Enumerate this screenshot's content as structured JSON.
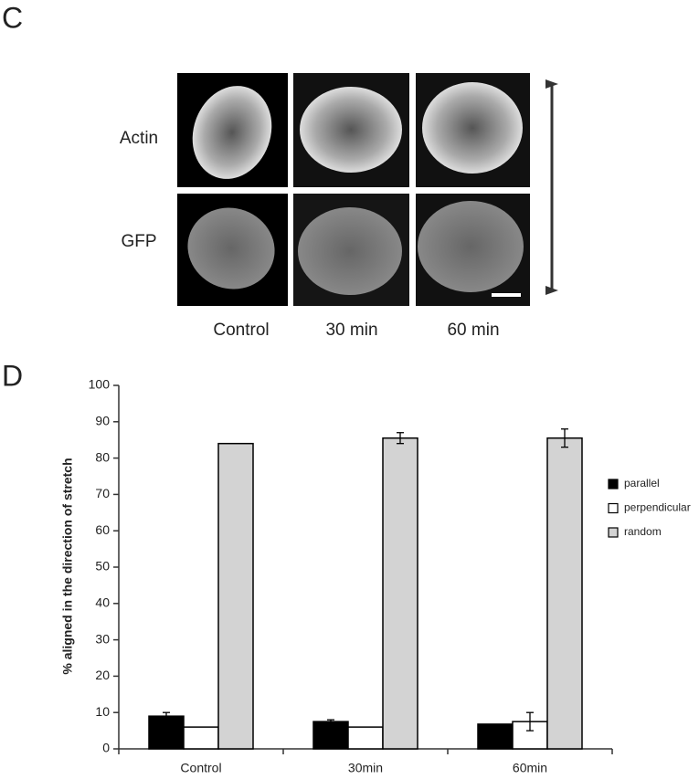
{
  "panel_c": {
    "label": "C",
    "rows": [
      "Actin",
      "GFP"
    ],
    "columns": [
      "Control",
      "30 min",
      "60 min"
    ]
  },
  "panel_d": {
    "label": "D"
  },
  "chart_data": {
    "type": "bar",
    "y_label": "% aligned in the direction of stretch",
    "categories": [
      "Control",
      "30min",
      "60min"
    ],
    "series": [
      {
        "name": "parallel",
        "color": "#000000",
        "values": [
          9,
          7.5,
          6.8
        ],
        "errors": [
          1,
          0.5,
          null
        ]
      },
      {
        "name": "perpendicular",
        "color": "#ffffff",
        "values": [
          6,
          6,
          7.5
        ],
        "errors": [
          null,
          null,
          2.5
        ]
      },
      {
        "name": "random",
        "color": "#d3d3d3",
        "values": [
          84,
          85.5,
          85.5
        ],
        "errors": [
          null,
          1.5,
          2.5
        ]
      }
    ],
    "ylim": [
      0,
      100
    ],
    "yticks": [
      0,
      10,
      20,
      30,
      40,
      50,
      60,
      70,
      80,
      90,
      100
    ],
    "grid": false,
    "legend": "right"
  }
}
